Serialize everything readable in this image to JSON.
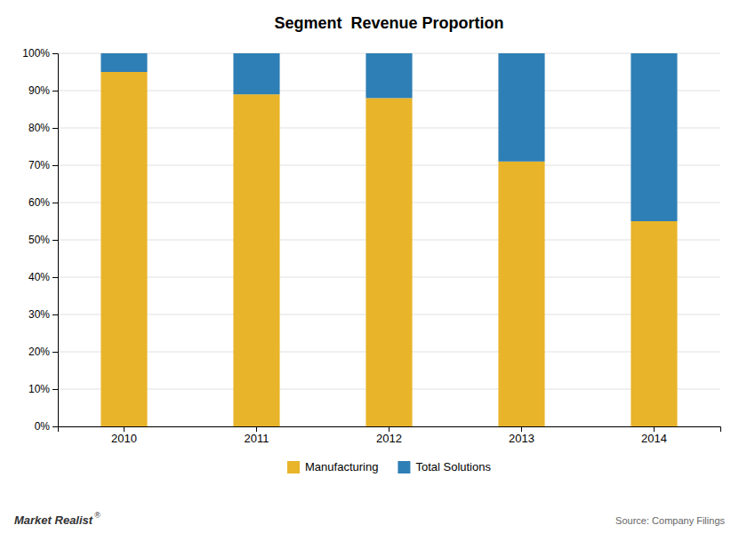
{
  "chart_data": {
    "type": "bar",
    "stacked": true,
    "title": "Segment  Revenue Proportion",
    "categories": [
      "2010",
      "2011",
      "2012",
      "2013",
      "2014"
    ],
    "series": [
      {
        "name": "Manufacturing",
        "color": "#E8B429",
        "values": [
          0.95,
          0.89,
          0.88,
          0.71,
          0.55
        ]
      },
      {
        "name": "Total Solutions",
        "color": "#2E7FB5",
        "values": [
          0.05,
          0.11,
          0.12,
          0.29,
          0.45
        ]
      }
    ],
    "ylim": [
      0,
      1.0
    ],
    "yticks": [
      {
        "value": 0,
        "label": "0%"
      },
      {
        "value": 0.1,
        "label": "10%"
      },
      {
        "value": 0.2,
        "label": "20%"
      },
      {
        "value": 0.3,
        "label": "30%"
      },
      {
        "value": 0.4,
        "label": "40%"
      },
      {
        "value": 0.5,
        "label": "50%"
      },
      {
        "value": 0.6,
        "label": "60%"
      },
      {
        "value": 0.7,
        "label": "70%"
      },
      {
        "value": 0.8,
        "label": "80%"
      },
      {
        "value": 0.9,
        "label": "90%"
      },
      {
        "value": 1.0,
        "label": "100%"
      }
    ],
    "grid": true,
    "legend": "bottom",
    "annotations": [
      "Source: Company Filings",
      "Market Realist",
      "®"
    ]
  }
}
